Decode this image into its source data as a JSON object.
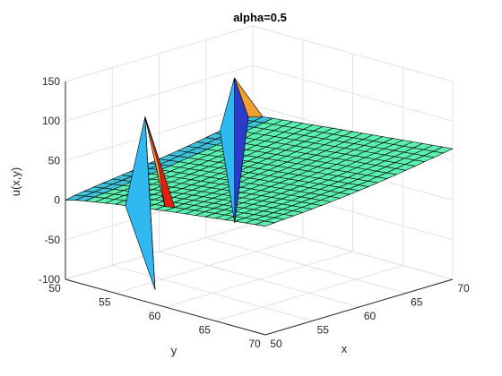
{
  "chart_data": {
    "type": "surface",
    "title": "alpha=0.5",
    "xlabel": "x",
    "ylabel": "y",
    "zlabel": "u(x,y)",
    "xlim": [
      50,
      70
    ],
    "ylim": [
      50,
      70
    ],
    "zlim": [
      -100,
      150
    ],
    "x_ticks": [
      "50",
      "55",
      "60",
      "65",
      "70"
    ],
    "y_ticks": [
      "50",
      "55",
      "60",
      "65",
      "70"
    ],
    "z_ticks": [
      "-100",
      "-50",
      "0",
      "50",
      "100",
      "150"
    ],
    "grid": true,
    "surface_description_values": {
      "baseline_near_x50_y50": 0,
      "plateau_far_corner_x70_y70": 65,
      "left_spike": {
        "x": 50.5,
        "y": 57.5,
        "peak": 130,
        "trough": -85
      },
      "right_spike": {
        "x": 67.5,
        "y": 50.5,
        "peak": 95,
        "trough": -85
      }
    },
    "colors": {
      "surface_main": "#5cf0b0",
      "spike_high": "#e81c10",
      "spike_mid": "#f0a030",
      "spike_low": "#2a3cc8",
      "spike_cyan": "#30b8f0"
    }
  }
}
